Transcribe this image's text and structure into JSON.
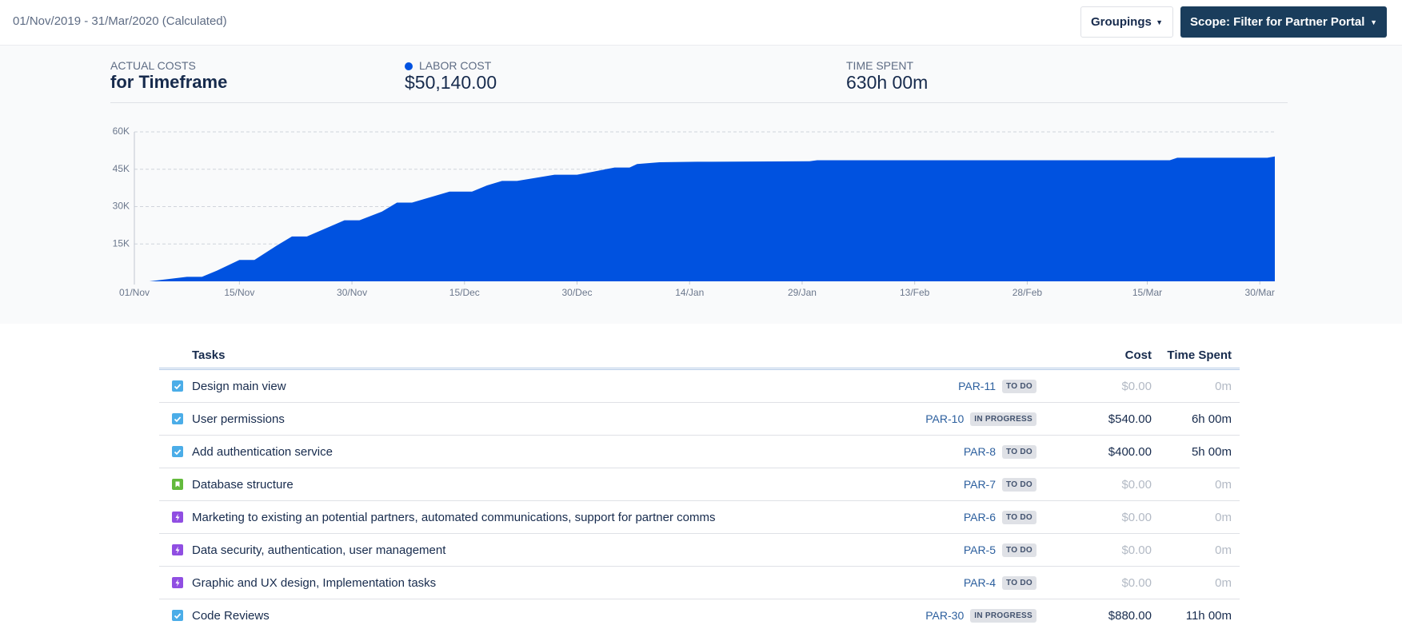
{
  "header": {
    "range": "01/Nov/2019 - 31/Mar/2020 (Calculated)",
    "groupings": "Groupings",
    "scope": "Scope: Filter for Partner Portal"
  },
  "summary": {
    "title_small": "ACTUAL COSTS",
    "title": "for Timeframe",
    "labor_label": "LABOR COST",
    "labor_value": "$50,140.00",
    "time_label": "TIME SPENT",
    "time_value": "630h 00m"
  },
  "chart_data": {
    "type": "area",
    "color": "#0052e0",
    "grid": true,
    "x": [
      0,
      2,
      7,
      9,
      11,
      14,
      16,
      19,
      21,
      23,
      28,
      30,
      33,
      35,
      37,
      42,
      45,
      47,
      49,
      51,
      56,
      59,
      61,
      64,
      66,
      67,
      70,
      75,
      90,
      91,
      138,
      139,
      151,
      152
    ],
    "values": [
      0,
      0,
      1800,
      1800,
      4300,
      8600,
      8600,
      14400,
      18000,
      18000,
      24500,
      24500,
      28000,
      31600,
      31600,
      36000,
      36000,
      38500,
      40300,
      40300,
      42800,
      42800,
      43900,
      45700,
      45700,
      47100,
      47800,
      48000,
      48200,
      48600,
      48600,
      49600,
      49600,
      50140
    ],
    "xlim": [
      0,
      152
    ],
    "xticks": [
      {
        "value": 0,
        "label": "01/Nov"
      },
      {
        "value": 14,
        "label": "15/Nov"
      },
      {
        "value": 29,
        "label": "30/Nov"
      },
      {
        "value": 44,
        "label": "15/Dec"
      },
      {
        "value": 59,
        "label": "30/Dec"
      },
      {
        "value": 74,
        "label": "14/Jan"
      },
      {
        "value": 89,
        "label": "29/Jan"
      },
      {
        "value": 104,
        "label": "13/Feb"
      },
      {
        "value": 119,
        "label": "28/Feb"
      },
      {
        "value": 135,
        "label": "15/Mar"
      },
      {
        "value": 150,
        "label": "30/Mar"
      }
    ],
    "ylim": [
      0,
      60000
    ],
    "yticks": [
      {
        "value": 15000,
        "label": "15K"
      },
      {
        "value": 30000,
        "label": "30K"
      },
      {
        "value": 45000,
        "label": "45K"
      },
      {
        "value": 60000,
        "label": "60K"
      }
    ]
  },
  "table": {
    "columns": [
      "Tasks",
      "Cost",
      "Time Spent"
    ],
    "rows": [
      {
        "icon": "task",
        "name": "Design main view",
        "key": "PAR-11",
        "status": "TO DO",
        "cost": "$0.00",
        "time": "0m",
        "muted": true
      },
      {
        "icon": "task",
        "name": "User permissions",
        "key": "PAR-10",
        "status": "IN PROGRESS",
        "cost": "$540.00",
        "time": "6h 00m",
        "muted": false
      },
      {
        "icon": "task",
        "name": "Add authentication service",
        "key": "PAR-8",
        "status": "TO DO",
        "cost": "$400.00",
        "time": "5h 00m",
        "muted": false
      },
      {
        "icon": "story",
        "name": "Database structure",
        "key": "PAR-7",
        "status": "TO DO",
        "cost": "$0.00",
        "time": "0m",
        "muted": true
      },
      {
        "icon": "epic",
        "name": "Marketing to existing an potential partners, automated communications, support for partner comms",
        "key": "PAR-6",
        "status": "TO DO",
        "cost": "$0.00",
        "time": "0m",
        "muted": true
      },
      {
        "icon": "epic",
        "name": "Data security, authentication, user management",
        "key": "PAR-5",
        "status": "TO DO",
        "cost": "$0.00",
        "time": "0m",
        "muted": true
      },
      {
        "icon": "epic",
        "name": "Graphic and UX design, Implementation tasks",
        "key": "PAR-4",
        "status": "TO DO",
        "cost": "$0.00",
        "time": "0m",
        "muted": true
      },
      {
        "icon": "task",
        "name": "Code Reviews",
        "key": "PAR-30",
        "status": "IN PROGRESS",
        "cost": "$880.00",
        "time": "11h 00m",
        "muted": false
      }
    ]
  }
}
